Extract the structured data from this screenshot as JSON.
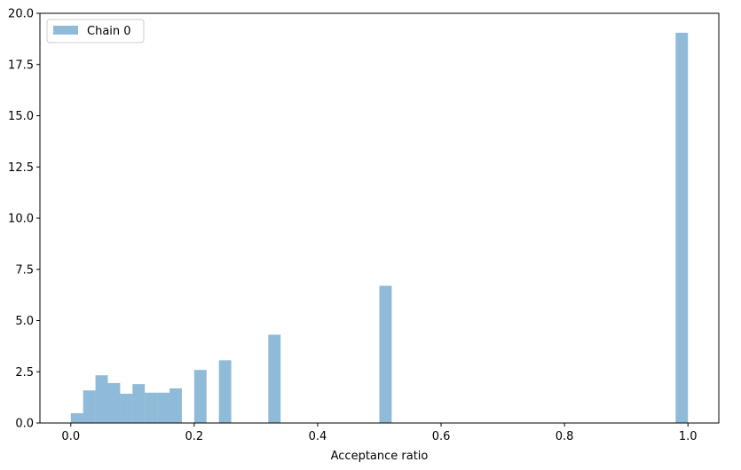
{
  "chart_data": {
    "type": "bar",
    "title": "",
    "xlabel": "Acceptance ratio",
    "ylabel": "",
    "xlim": [
      -0.05,
      1.05
    ],
    "ylim": [
      0,
      20
    ],
    "bin_width": 0.02,
    "x_ticks": [
      0.0,
      0.2,
      0.4,
      0.6,
      0.8,
      1.0
    ],
    "x_tick_labels": [
      "0.0",
      "0.2",
      "0.4",
      "0.6",
      "0.8",
      "1.0"
    ],
    "y_ticks": [
      0.0,
      2.5,
      5.0,
      7.5,
      10.0,
      12.5,
      15.0,
      17.5,
      20.0
    ],
    "y_tick_labels": [
      "0.0",
      "2.5",
      "5.0",
      "7.5",
      "10.0",
      "12.5",
      "15.0",
      "17.5",
      "20.0"
    ],
    "grid": false,
    "legend_position": "top-left",
    "series": [
      {
        "name": "Chain 0",
        "color": "#1f77b4",
        "opacity": 0.5,
        "bins": [
          {
            "x": 0.0,
            "value": 0.48
          },
          {
            "x": 0.02,
            "value": 1.59
          },
          {
            "x": 0.04,
            "value": 2.33
          },
          {
            "x": 0.06,
            "value": 1.95
          },
          {
            "x": 0.08,
            "value": 1.43
          },
          {
            "x": 0.1,
            "value": 1.9
          },
          {
            "x": 0.12,
            "value": 1.48
          },
          {
            "x": 0.14,
            "value": 1.48
          },
          {
            "x": 0.16,
            "value": 1.69
          },
          {
            "x": 0.2,
            "value": 2.59
          },
          {
            "x": 0.24,
            "value": 3.06
          },
          {
            "x": 0.32,
            "value": 4.31
          },
          {
            "x": 0.5,
            "value": 6.7
          },
          {
            "x": 0.98,
            "value": 19.05
          }
        ]
      }
    ]
  }
}
